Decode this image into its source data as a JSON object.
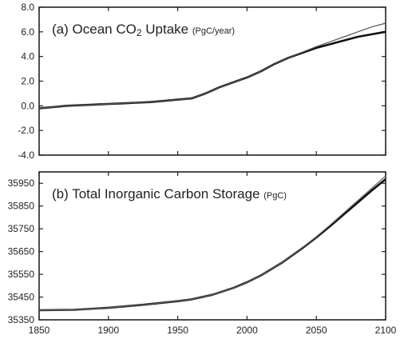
{
  "chart_data": [
    {
      "type": "line",
      "panel_label": "(a)",
      "title": "Ocean CO",
      "title_subscript": "2",
      "title_suffix": " Uptake",
      "unit": "(PgC/year)",
      "xlim": [
        1850,
        2100
      ],
      "ylim": [
        -4.0,
        8.0
      ],
      "yticks": [
        "8.0",
        "6.0",
        "4.0",
        "2.0",
        "0.0",
        "-2.0",
        "-4.0"
      ],
      "ytick_values": [
        8,
        6,
        4,
        2,
        0,
        -2,
        -4
      ],
      "grid": false,
      "series": [
        {
          "color": "#111111",
          "x": [
            1850,
            1860,
            1870,
            1880,
            1890,
            1900,
            1910,
            1920,
            1930,
            1940,
            1950,
            1960,
            1970,
            1980,
            1990,
            2000,
            2010,
            2020,
            2030,
            2040,
            2050,
            2060,
            2070,
            2080,
            2090,
            2100
          ],
          "y": [
            -0.2,
            -0.1,
            0.0,
            0.05,
            0.1,
            0.15,
            0.2,
            0.25,
            0.3,
            0.4,
            0.5,
            0.6,
            1.0,
            1.5,
            1.9,
            2.3,
            2.8,
            3.4,
            3.9,
            4.3,
            4.7,
            5.0,
            5.3,
            5.6,
            5.8,
            6.0
          ]
        },
        {
          "color": "#555555",
          "x": [
            1850,
            1860,
            1870,
            1880,
            1890,
            1900,
            1910,
            1920,
            1930,
            1940,
            1950,
            1960,
            1970,
            1980,
            1990,
            2000,
            2010,
            2020,
            2030,
            2040,
            2050,
            2060,
            2070,
            2080,
            2090,
            2100
          ],
          "y": [
            -0.2,
            -0.1,
            0.0,
            0.05,
            0.1,
            0.15,
            0.2,
            0.25,
            0.3,
            0.4,
            0.5,
            0.6,
            1.0,
            1.5,
            1.9,
            2.3,
            2.8,
            3.4,
            3.9,
            4.35,
            4.8,
            5.2,
            5.6,
            6.0,
            6.4,
            6.7
          ]
        }
      ]
    },
    {
      "type": "line",
      "panel_label": "(b)",
      "title": "Total Inorganic Carbon Storage",
      "unit": "(PgC)",
      "xlim": [
        1850,
        2100
      ],
      "xticks": [
        "1850",
        "1900",
        "1950",
        "2000",
        "2050",
        "2100"
      ],
      "xtick_values": [
        1850,
        1900,
        1950,
        2000,
        2050,
        2100
      ],
      "ylim": [
        35350,
        36000
      ],
      "yticks": [
        "35950",
        "35850",
        "35750",
        "35650",
        "35550",
        "35450",
        "35350"
      ],
      "ytick_values": [
        35950,
        35850,
        35750,
        35650,
        35550,
        35450,
        35350
      ],
      "grid": false,
      "series": [
        {
          "color": "#111111",
          "x": [
            1850,
            1875,
            1900,
            1925,
            1950,
            1960,
            1975,
            1990,
            2000,
            2010,
            2025,
            2040,
            2050,
            2060,
            2075,
            2090,
            2100
          ],
          "y": [
            35392,
            35394,
            35403,
            35416,
            35432,
            35440,
            35460,
            35490,
            35515,
            35545,
            35600,
            35665,
            35712,
            35762,
            35840,
            35918,
            35968
          ]
        },
        {
          "color": "#666666",
          "x": [
            1850,
            1875,
            1900,
            1925,
            1950,
            1960,
            1975,
            1990,
            2000,
            2010,
            2025,
            2040,
            2050,
            2060,
            2075,
            2090,
            2100
          ],
          "y": [
            35392,
            35394,
            35403,
            35416,
            35432,
            35440,
            35460,
            35490,
            35515,
            35545,
            35601,
            35667,
            35715,
            35767,
            35848,
            35928,
            35982
          ]
        }
      ]
    }
  ]
}
